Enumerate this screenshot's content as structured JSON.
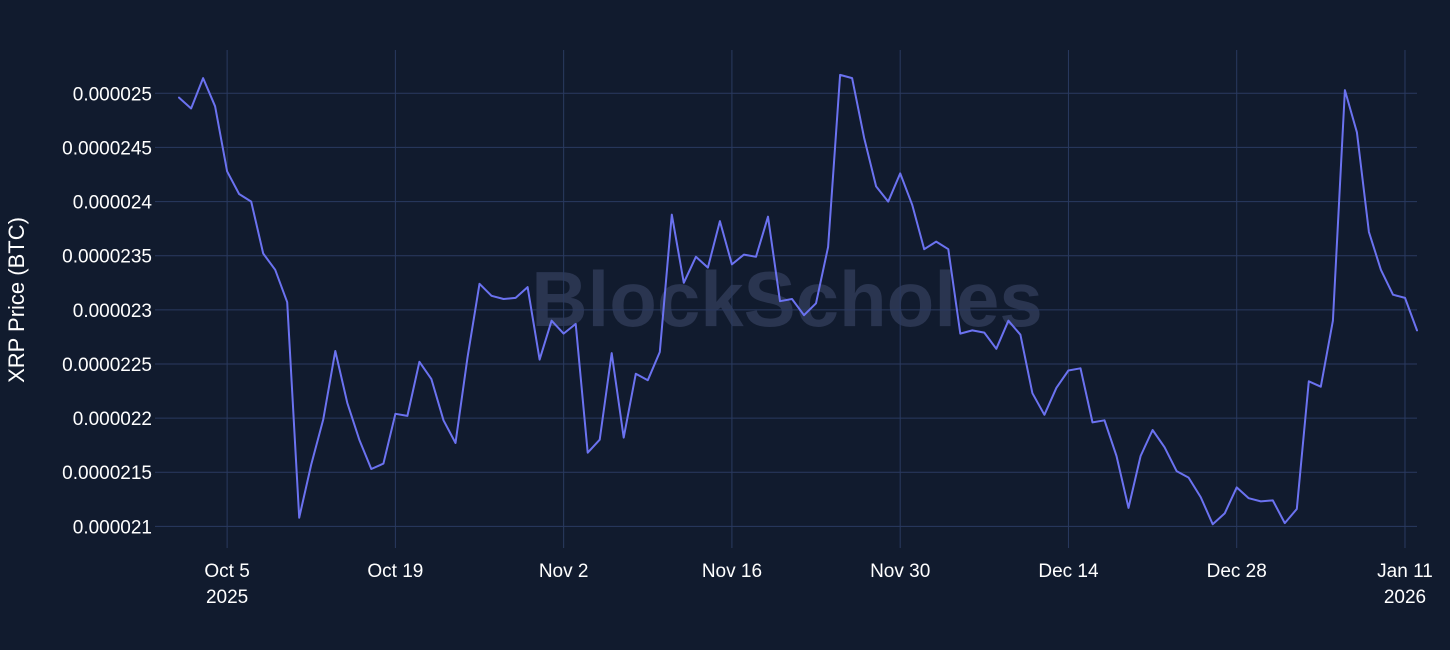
{
  "watermark": "BlockScholes",
  "chart_data": {
    "type": "line",
    "title": "",
    "xlabel": "",
    "ylabel": "XRP Price (BTC)",
    "grid": true,
    "x_range": [
      "2025-09-29",
      "2026-01-12"
    ],
    "ylim": [
      2.08e-05,
      2.54e-05
    ],
    "x_ticks": [
      {
        "date": "2025-10-05",
        "label": "Oct 5",
        "sublabel": "2025"
      },
      {
        "date": "2025-10-19",
        "label": "Oct 19",
        "sublabel": ""
      },
      {
        "date": "2025-11-02",
        "label": "Nov 2",
        "sublabel": ""
      },
      {
        "date": "2025-11-16",
        "label": "Nov 16",
        "sublabel": ""
      },
      {
        "date": "2025-11-30",
        "label": "Nov 30",
        "sublabel": ""
      },
      {
        "date": "2025-12-14",
        "label": "Dec 14",
        "sublabel": ""
      },
      {
        "date": "2025-12-28",
        "label": "Dec 28",
        "sublabel": ""
      },
      {
        "date": "2026-01-11",
        "label": "Jan 11",
        "sublabel": "2026"
      }
    ],
    "y_ticks": [
      {
        "value": 2.1e-05,
        "label": "0.000021"
      },
      {
        "value": 2.15e-05,
        "label": "0.0000215"
      },
      {
        "value": 2.2e-05,
        "label": "0.000022"
      },
      {
        "value": 2.25e-05,
        "label": "0.0000225"
      },
      {
        "value": 2.3e-05,
        "label": "0.000023"
      },
      {
        "value": 2.35e-05,
        "label": "0.0000235"
      },
      {
        "value": 2.4e-05,
        "label": "0.000024"
      },
      {
        "value": 2.45e-05,
        "label": "0.0000245"
      },
      {
        "value": 2.5e-05,
        "label": "0.000025"
      }
    ],
    "series": [
      {
        "color": "#6b72f0",
        "x": [
          "2025-10-01",
          "2025-10-02",
          "2025-10-03",
          "2025-10-04",
          "2025-10-05",
          "2025-10-06",
          "2025-10-07",
          "2025-10-08",
          "2025-10-09",
          "2025-10-10",
          "2025-10-11",
          "2025-10-12",
          "2025-10-13",
          "2025-10-14",
          "2025-10-15",
          "2025-10-16",
          "2025-10-17",
          "2025-10-18",
          "2025-10-19",
          "2025-10-20",
          "2025-10-21",
          "2025-10-22",
          "2025-10-23",
          "2025-10-24",
          "2025-10-25",
          "2025-10-26",
          "2025-10-27",
          "2025-10-28",
          "2025-10-29",
          "2025-10-30",
          "2025-10-31",
          "2025-11-01",
          "2025-11-02",
          "2025-11-03",
          "2025-11-04",
          "2025-11-05",
          "2025-11-06",
          "2025-11-07",
          "2025-11-08",
          "2025-11-09",
          "2025-11-10",
          "2025-11-11",
          "2025-11-12",
          "2025-11-13",
          "2025-11-14",
          "2025-11-15",
          "2025-11-16",
          "2025-11-17",
          "2025-11-18",
          "2025-11-19",
          "2025-11-20",
          "2025-11-21",
          "2025-11-22",
          "2025-11-23",
          "2025-11-24",
          "2025-11-25",
          "2025-11-26",
          "2025-11-27",
          "2025-11-28",
          "2025-11-29",
          "2025-11-30",
          "2025-12-01",
          "2025-12-02",
          "2025-12-03",
          "2025-12-04",
          "2025-12-05",
          "2025-12-06",
          "2025-12-07",
          "2025-12-08",
          "2025-12-09",
          "2025-12-10",
          "2025-12-11",
          "2025-12-12",
          "2025-12-13",
          "2025-12-14",
          "2025-12-15",
          "2025-12-16",
          "2025-12-17",
          "2025-12-18",
          "2025-12-19",
          "2025-12-20",
          "2025-12-21",
          "2025-12-22",
          "2025-12-23",
          "2025-12-24",
          "2025-12-25",
          "2025-12-26",
          "2025-12-27",
          "2025-12-28",
          "2025-12-29",
          "2025-12-30",
          "2025-12-31",
          "2026-01-01",
          "2026-01-02",
          "2026-01-03",
          "2026-01-04",
          "2026-01-05",
          "2026-01-06",
          "2026-01-07",
          "2026-01-08",
          "2026-01-09",
          "2026-01-10",
          "2026-01-11",
          "2026-01-12"
        ],
        "y": [
          2.496e-05,
          2.486e-05,
          2.514e-05,
          2.488e-05,
          2.428e-05,
          2.407e-05,
          2.4e-05,
          2.352e-05,
          2.337e-05,
          2.307e-05,
          2.108e-05,
          2.157e-05,
          2.199e-05,
          2.262e-05,
          2.214e-05,
          2.18e-05,
          2.153e-05,
          2.158e-05,
          2.204e-05,
          2.202e-05,
          2.252e-05,
          2.236e-05,
          2.198e-05,
          2.177e-05,
          2.256e-05,
          2.324e-05,
          2.313e-05,
          2.31e-05,
          2.311e-05,
          2.321e-05,
          2.254e-05,
          2.29e-05,
          2.278e-05,
          2.287e-05,
          2.168e-05,
          2.18e-05,
          2.26e-05,
          2.182e-05,
          2.241e-05,
          2.235e-05,
          2.261e-05,
          2.388e-05,
          2.325e-05,
          2.349e-05,
          2.339e-05,
          2.382e-05,
          2.342e-05,
          2.351e-05,
          2.349e-05,
          2.386e-05,
          2.308e-05,
          2.31e-05,
          2.295e-05,
          2.306e-05,
          2.358e-05,
          2.517e-05,
          2.514e-05,
          2.459e-05,
          2.414e-05,
          2.4e-05,
          2.426e-05,
          2.397e-05,
          2.356e-05,
          2.363e-05,
          2.356e-05,
          2.278e-05,
          2.281e-05,
          2.279e-05,
          2.264e-05,
          2.29e-05,
          2.277e-05,
          2.223e-05,
          2.203e-05,
          2.228e-05,
          2.244e-05,
          2.246e-05,
          2.196e-05,
          2.198e-05,
          2.165e-05,
          2.117e-05,
          2.165e-05,
          2.189e-05,
          2.173e-05,
          2.151e-05,
          2.145e-05,
          2.127e-05,
          2.102e-05,
          2.112e-05,
          2.136e-05,
          2.126e-05,
          2.123e-05,
          2.124e-05,
          2.103e-05,
          2.116e-05,
          2.234e-05,
          2.229e-05,
          2.29e-05,
          2.503e-05,
          2.464e-05,
          2.372e-05,
          2.337e-05,
          2.314e-05,
          2.311e-05,
          2.281e-05
        ]
      }
    ]
  }
}
